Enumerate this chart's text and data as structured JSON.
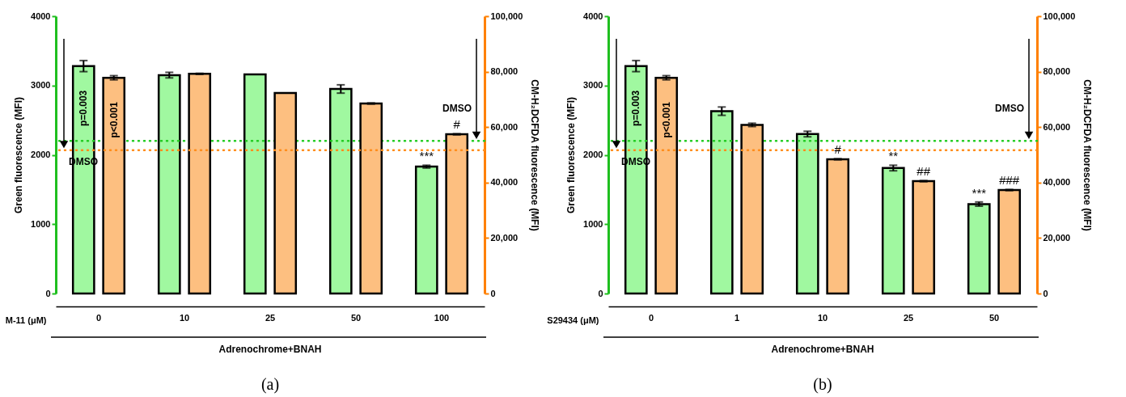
{
  "chart_data": [
    {
      "type": "bar",
      "title": "(a)",
      "xlabel": "M-11 (μM)",
      "ylabel": "Green fluorescence (MFI)",
      "y2label": "CM-H₂DCFDA fluorescence (MFI)",
      "categories": [
        "0",
        "10",
        "25",
        "50",
        "100"
      ],
      "series": [
        {
          "color": "#a0f8a0",
          "values": [
            3280,
            3150,
            3160,
            2950,
            1830
          ],
          "errors": [
            80,
            40,
            null,
            60,
            20
          ],
          "value_labels": [
            null,
            null,
            null,
            null,
            "***"
          ]
        },
        {
          "color": "#fdbf80",
          "axis": "y2",
          "values": [
            77800,
            79200,
            72300,
            68500,
            57400
          ],
          "errors": [
            750,
            200,
            null,
            200,
            200
          ],
          "value_labels": [
            null,
            null,
            null,
            null,
            "#"
          ]
        }
      ],
      "ylim": [
        0,
        4000
      ],
      "yticks": [
        0,
        1000,
        2000,
        3000,
        4000
      ],
      "y2lim": [
        0,
        100000
      ],
      "y2ticks": [
        0,
        {
          "value": 20000,
          "label": "20,000"
        },
        {
          "value": 40000,
          "label": "40,000"
        },
        {
          "value": 60000,
          "label": "60,000"
        },
        {
          "value": 80000,
          "label": "80,000"
        },
        {
          "value": 100000,
          "label": "100,000"
        }
      ],
      "ref_lines": [
        {
          "axis": "y",
          "value": 2200,
          "label": "DMSO",
          "color": "#22cc22",
          "line_style": "dotted"
        },
        {
          "axis": "y2",
          "value": 51700,
          "label": "DMSO",
          "color": "#ff8c1a",
          "line_style": "dotted"
        }
      ],
      "annotations": [
        "p=0.003",
        "p<0.001",
        "Adrenochrome+BNAH"
      ],
      "grid": false
    },
    {
      "type": "bar",
      "title": "(b)",
      "xlabel": "S29434 (μM)",
      "ylabel": "Green fluorescence (MFI)",
      "y2label": "CM-H₂DCFDA fluorescence (MFI)",
      "categories": [
        "0",
        "1",
        "10",
        "25",
        "50"
      ],
      "series": [
        {
          "color": "#a0f8a0",
          "values": [
            3280,
            2630,
            2300,
            1810,
            1290
          ],
          "errors": [
            80,
            60,
            40,
            40,
            30
          ],
          "value_labels": [
            null,
            null,
            null,
            "**",
            "***"
          ]
        },
        {
          "color": "#fdbf80",
          "axis": "y2",
          "values": [
            77800,
            60800,
            48400,
            40500,
            37300
          ],
          "errors": [
            750,
            600,
            200,
            200,
            200
          ],
          "value_labels": [
            null,
            null,
            "#",
            "##",
            "###"
          ]
        }
      ],
      "ylim": [
        0,
        4000
      ],
      "yticks": [
        0,
        1000,
        2000,
        3000,
        4000
      ],
      "y2lim": [
        0,
        100000
      ],
      "y2ticks": [
        0,
        {
          "value": 20000,
          "label": "20,000"
        },
        {
          "value": 40000,
          "label": "40,000"
        },
        {
          "value": 60000,
          "label": "60,000"
        },
        {
          "value": 80000,
          "label": "80,000"
        },
        {
          "value": 100000,
          "label": "100,000"
        }
      ],
      "ref_lines": [
        {
          "axis": "y",
          "value": 2200,
          "label": "DMSO",
          "color": "#22cc22",
          "line_style": "dotted"
        },
        {
          "axis": "y2",
          "value": 51700,
          "label": "DMSO",
          "color": "#ff8c1a",
          "line_style": "dotted"
        }
      ],
      "annotations": [
        "p=0.003",
        "p<0.001",
        "Adrenochrome+BNAH"
      ],
      "grid": false
    }
  ]
}
